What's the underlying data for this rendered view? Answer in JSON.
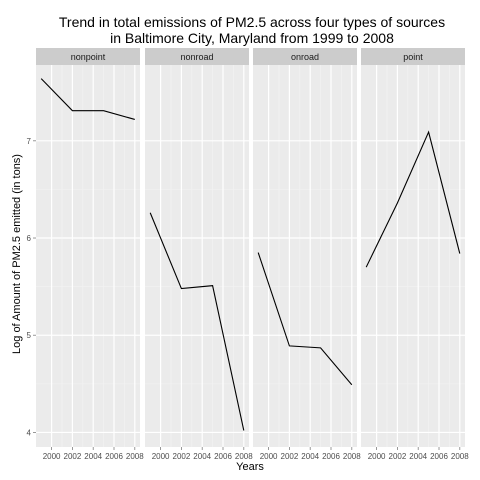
{
  "chart_data": {
    "type": "line",
    "facet_layout": "facet_wrap",
    "title_lines": [
      "Trend in total emissions of PM2.5 across four types of sources",
      "in Baltimore City, Maryland from 1999 to 2008"
    ],
    "xlabel": "Years",
    "ylabel": "Log of Amount of PM2.5 emitted (in tons)",
    "x": [
      1999,
      2002,
      2005,
      2008
    ],
    "xlim": [
      1998.5,
      2008.5
    ],
    "ylim": [
      3.85,
      7.78
    ],
    "x_ticks": [
      2000,
      2002,
      2004,
      2006,
      2008
    ],
    "x_tick_labels": [
      "2000",
      "2002",
      "2004",
      "2006",
      "2008"
    ],
    "y_ticks": [
      4,
      5,
      6,
      7
    ],
    "y_tick_labels": [
      "4",
      "5",
      "6",
      "7"
    ],
    "grid": true,
    "panels": [
      {
        "name": "nonpoint",
        "values": [
          7.64,
          7.31,
          7.31,
          7.22
        ]
      },
      {
        "name": "nonroad",
        "values": [
          6.26,
          5.48,
          5.51,
          4.02
        ]
      },
      {
        "name": "onroad",
        "values": [
          5.85,
          4.89,
          4.87,
          4.49
        ]
      },
      {
        "name": "point",
        "values": [
          5.7,
          6.36,
          7.09,
          5.84
        ]
      }
    ]
  },
  "colors": {
    "panel_background": "#ebebeb",
    "strip_background": "#cccccc",
    "major_grid": "#ffffff",
    "minor_grid": "#f2f2f2",
    "line": "#000000",
    "tick": "#7f7f7f"
  }
}
